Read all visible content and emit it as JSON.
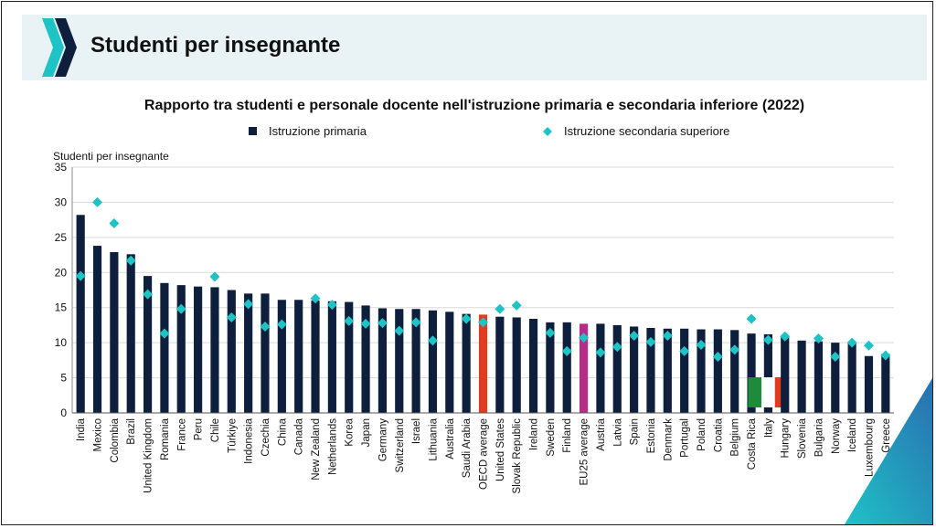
{
  "slide": {
    "title": "Studenti per insegnante"
  },
  "chart_data": {
    "type": "bar",
    "title": "Rapporto tra studenti e personale docente nell'istruzione primaria e secondaria inferiore (2022)",
    "ylabel": "Studenti per insegnante",
    "xlabel": "",
    "ylim": [
      0,
      35
    ],
    "yticks": [
      0,
      5,
      10,
      15,
      20,
      25,
      30,
      35
    ],
    "grid": true,
    "legend_position": "top",
    "categories": [
      "India",
      "Mexico",
      "Colombia",
      "Brazil",
      "United Kingdom",
      "Romania",
      "France",
      "Peru",
      "Chile",
      "Türkiye",
      "Indonesia",
      "Czechia",
      "China",
      "Canada",
      "New Zealand",
      "Netherlands",
      "Korea",
      "Japan",
      "Germany",
      "Switzerland",
      "Israel",
      "Lithuania",
      "Australia",
      "Saudi Arabia",
      "OECD average",
      "United States",
      "Slovak Republic",
      "Ireland",
      "Sweden",
      "Finland",
      "EU25 average",
      "Austria",
      "Latvia",
      "Spain",
      "Estonia",
      "Denmark",
      "Portugal",
      "Poland",
      "Croatia",
      "Belgium",
      "Costa Rica",
      "Italy",
      "Hungary",
      "Slovenia",
      "Bulgaria",
      "Norway",
      "Iceland",
      "Luxembourg",
      "Greece"
    ],
    "series": [
      {
        "name": "Istruzione primaria",
        "type": "bar",
        "color": "#0e1f3d",
        "values": [
          28.2,
          23.8,
          22.9,
          22.6,
          19.5,
          18.5,
          18.2,
          18.0,
          17.9,
          17.5,
          17.0,
          17.0,
          16.1,
          16.1,
          16.0,
          15.9,
          15.8,
          15.3,
          14.9,
          14.8,
          14.8,
          14.6,
          14.4,
          14.1,
          14.0,
          13.7,
          13.6,
          13.4,
          12.9,
          12.9,
          12.7,
          12.7,
          12.5,
          12.3,
          12.1,
          12.0,
          12.0,
          11.9,
          11.9,
          11.8,
          11.3,
          11.2,
          11.0,
          10.3,
          10.2,
          10.0,
          10.1,
          8.1,
          8.4
        ]
      },
      {
        "name": "Istruzione secondaria superiore",
        "type": "scatter",
        "color": "#1ec3c6",
        "values": [
          19.5,
          30.0,
          27.0,
          21.7,
          16.9,
          11.3,
          14.8,
          null,
          19.4,
          13.6,
          15.5,
          12.3,
          12.6,
          null,
          16.3,
          15.4,
          13.1,
          12.7,
          12.8,
          11.7,
          12.9,
          10.3,
          null,
          13.4,
          12.9,
          14.8,
          15.3,
          null,
          11.4,
          8.8,
          10.7,
          8.6,
          9.4,
          11.0,
          10.1,
          11.0,
          8.8,
          9.7,
          8.0,
          9.0,
          13.4,
          10.4,
          10.9,
          null,
          10.6,
          8.0,
          10.0,
          9.6,
          8.2
        ]
      }
    ],
    "highlight_colors": {
      "OECD average": "#e03c1f",
      "EU25 average": "#b52d87",
      "Italy": "flag"
    },
    "flag_colors": [
      "#1f8a3a",
      "#ffffff",
      "#e03c1f"
    ],
    "corner_gradient": [
      "#1ec3c6",
      "#2a6fb0"
    ]
  }
}
